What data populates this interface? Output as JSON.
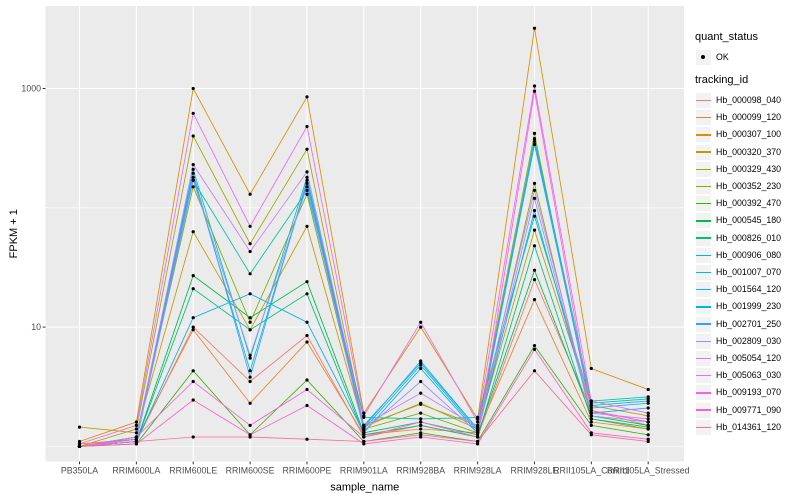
{
  "theme": {
    "background": "#FFFFFF",
    "panel_bg": "#EBEBEB",
    "grid_color": "#FFFFFF",
    "tick_mark_color": "#333333",
    "tick_label_color": "#4D4D4D",
    "axis_title_color": "#000000",
    "legend_key_bg": "#F2F2F2",
    "point_color": "#000000"
  },
  "chart_data": {
    "type": "line",
    "title": "",
    "xlabel": "sample_name",
    "ylabel": "FPKM + 1",
    "y_scale": "log10",
    "y_axis_ticks": [
      10,
      1000
    ],
    "y_minor_gridlines": [
      1,
      100
    ],
    "ylim": [
      0.75,
      4800
    ],
    "grid": true,
    "legend_position": "right",
    "point_marker": "circle",
    "categories": [
      "PB350LA",
      "RRIM600LA",
      "RRIM600LE",
      "RRIM600SE",
      "RRIM600PE",
      "RRIM901LA",
      "RRIM928BA",
      "RRIM928LA",
      "RRIM928LE",
      "RRII105LA_Control",
      "RRII105LA_Stressed"
    ],
    "legend": {
      "quant_status": {
        "title": "quant_status",
        "entries": [
          {
            "label": "OK",
            "glyph": "point"
          }
        ]
      },
      "tracking_id": {
        "title": "tracking_id"
      }
    },
    "series": [
      {
        "name": "Hb_000098_040",
        "color": "#F8766D",
        "values": [
          1.0,
          1.1,
          10,
          3.5,
          8.5,
          1.2,
          1.5,
          1.2,
          25,
          2.0,
          1.5
        ]
      },
      {
        "name": "Hb_000099_120",
        "color": "#EA8331",
        "values": [
          1.05,
          1.15,
          9.5,
          2.3,
          7.5,
          1.25,
          1.4,
          1.3,
          17,
          1.6,
          1.4
        ]
      },
      {
        "name": "Hb_000307_100",
        "color": "#D89000",
        "values": [
          1.1,
          1.6,
          1000,
          130,
          850,
          1.9,
          10,
          1.7,
          3200,
          4.5,
          3.0
        ]
      },
      {
        "name": "Hb_000320_370",
        "color": "#C09B00",
        "values": [
          1.45,
          1.3,
          63,
          9.5,
          70,
          1.45,
          2.3,
          1.4,
          65,
          2.2,
          1.8
        ]
      },
      {
        "name": "Hb_000329_430",
        "color": "#A3A500",
        "values": [
          1.0,
          1.4,
          400,
          50,
          310,
          1.5,
          2.25,
          1.5,
          420,
          2.0,
          1.6
        ]
      },
      {
        "name": "Hb_000352_230",
        "color": "#7CAE00",
        "values": [
          1.0,
          1.2,
          150,
          11,
          130,
          1.4,
          1.9,
          1.3,
          160,
          1.7,
          1.4
        ]
      },
      {
        "name": "Hb_000392_470",
        "color": "#39B600",
        "values": [
          1.0,
          1.05,
          4.3,
          1.25,
          3.6,
          1.1,
          1.3,
          1.1,
          7,
          1.5,
          1.25
        ]
      },
      {
        "name": "Hb_000545_180",
        "color": "#00BB4E",
        "values": [
          1.0,
          1.1,
          27,
          12,
          24,
          1.3,
          1.6,
          1.25,
          30,
          1.8,
          1.5
        ]
      },
      {
        "name": "Hb_000826_010",
        "color": "#00BF7D",
        "values": [
          1.0,
          1.1,
          21,
          9.5,
          19,
          1.25,
          1.5,
          1.2,
          48,
          1.7,
          1.45
        ]
      },
      {
        "name": "Hb_000906_080",
        "color": "#00C1A3",
        "values": [
          1.0,
          1.15,
          170,
          28,
          140,
          1.75,
          1.7,
          1.75,
          85,
          2.3,
          2.5
        ]
      },
      {
        "name": "Hb_001007_070",
        "color": "#00BFC4",
        "values": [
          1.0,
          1.2,
          210,
          5.5,
          180,
          1.5,
          5.0,
          1.4,
          380,
          2.4,
          2.6
        ]
      },
      {
        "name": "Hb_001564_120",
        "color": "#00BAE0",
        "values": [
          1.0,
          1.15,
          180,
          4.3,
          160,
          1.4,
          4.8,
          1.35,
          340,
          2.2,
          2.4
        ]
      },
      {
        "name": "Hb_001999_230",
        "color": "#00B0F6",
        "values": [
          1.0,
          1.1,
          12,
          19,
          11,
          1.3,
          4.5,
          1.3,
          95,
          1.9,
          2.1
        ]
      },
      {
        "name": "Hb_002701_250",
        "color": "#35A2FF",
        "values": [
          1.0,
          1.2,
          195,
          3.8,
          170,
          1.45,
          5.2,
          1.4,
          360,
          2.1,
          2.3
        ]
      },
      {
        "name": "Hb_002809_030",
        "color": "#9590FF",
        "values": [
          1.0,
          1.1,
          170,
          5.8,
          150,
          1.35,
          3.5,
          1.3,
          120,
          1.8,
          1.6
        ]
      },
      {
        "name": "Hb_005054_120",
        "color": "#C77CFF",
        "values": [
          1.0,
          1.15,
          230,
          43,
          200,
          1.5,
          2.8,
          1.45,
          140,
          1.9,
          1.7
        ]
      },
      {
        "name": "Hb_005063_030",
        "color": "#E76BF3",
        "values": [
          1.05,
          1.5,
          620,
          70,
          480,
          1.8,
          11,
          1.6,
          1050,
          2.4,
          1.9
        ]
      },
      {
        "name": "Hb_009193_070",
        "color": "#FA62DB",
        "values": [
          1.0,
          1.2,
          3.5,
          1.5,
          3.0,
          1.2,
          1.6,
          1.2,
          950,
          2.0,
          1.6
        ]
      },
      {
        "name": "Hb_009771_090",
        "color": "#FF61CC",
        "values": [
          1.0,
          1.05,
          2.45,
          1.25,
          2.2,
          1.05,
          1.2,
          1.05,
          6.5,
          1.3,
          1.15
        ]
      },
      {
        "name": "Hb_014361_120",
        "color": "#FF6A98",
        "values": [
          1.0,
          1.1,
          1.2,
          1.2,
          1.15,
          1.1,
          1.25,
          1.1,
          4.3,
          1.25,
          1.1
        ]
      }
    ]
  }
}
